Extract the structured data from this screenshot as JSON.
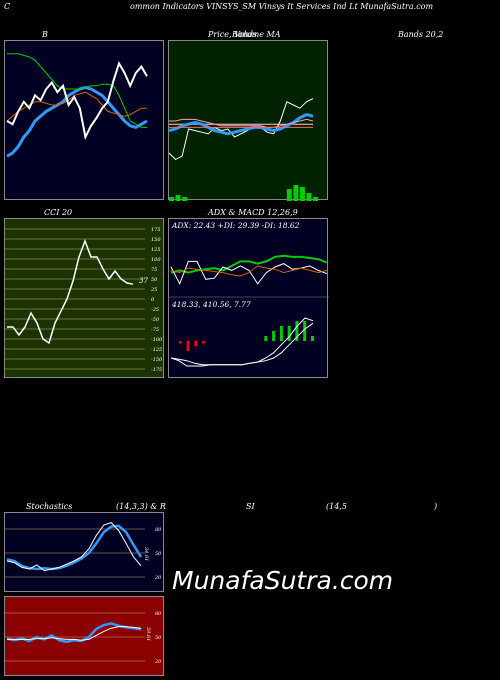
{
  "header": {
    "c": "C",
    "title": "ommon  Indicators VINSYS_SM Vinsys It Services Ind Lt MunafaSutra.com"
  },
  "colors": {
    "bg": "#000000",
    "navy": "#000022",
    "green_panel": "#002200",
    "cci_panel": "#1a3300",
    "rsi_panel": "#8b0000",
    "white": "#ffffff",
    "blue": "#3399ff",
    "green": "#00cc00",
    "orange": "#cc6600",
    "red": "#ff0000"
  },
  "panels": {
    "b": {
      "label": "B"
    },
    "price": {
      "label": "Price,  Volume  MA",
      "overlay": "Bands"
    },
    "bands": {
      "label": "Bands 20,2"
    },
    "cci": {
      "label": "CCI 20",
      "current": "37"
    },
    "adx": {
      "label": "ADX  & MACD 12,26,9",
      "adx_text": "ADX: 22.43  +DI: 29.39 -DI: 18.62",
      "macd_text": "418.33,  410.56,  7.77"
    },
    "stoch": {
      "label_left": "Stochastics",
      "label_mid": "(14,3,3) & R",
      "label_si": "SI",
      "label_right": "(14,5",
      "label_paren": ")",
      "current": "34.61"
    },
    "rsi": {
      "current": "59.61"
    }
  },
  "watermark": "MunafaSutra.com",
  "chart_data": [
    {
      "type": "line",
      "title": "B",
      "series": [
        {
          "values": [
            50,
            48,
            56,
            62,
            58,
            66,
            63,
            70,
            74,
            68,
            72,
            60,
            65,
            58,
            40,
            47,
            52,
            58,
            62,
            75,
            86,
            80,
            72,
            80,
            84,
            78
          ]
        },
        {
          "values": [
            28,
            30,
            34,
            40,
            44,
            50,
            53,
            56,
            58,
            60,
            62,
            66,
            68,
            70,
            71,
            70,
            68,
            66,
            62,
            58,
            54,
            50,
            47,
            46,
            48,
            50
          ]
        },
        {
          "values": [
            92,
            92,
            92,
            91,
            90,
            88,
            84,
            80,
            76,
            72,
            70,
            70,
            70,
            70,
            71,
            72,
            72,
            73,
            73,
            72,
            66,
            58,
            50,
            48,
            46,
            46
          ]
        },
        {
          "values": [
            50,
            53,
            56,
            58,
            60,
            62,
            62,
            61,
            60,
            60,
            61,
            63,
            66,
            67,
            68,
            66,
            64,
            60,
            56,
            55,
            54,
            53,
            54,
            56,
            58,
            58
          ]
        },
        {
          "values": [
            50,
            60,
            82,
            86,
            88,
            82,
            75,
            75,
            70,
            70,
            70,
            67,
            65,
            63,
            67,
            65,
            82,
            80,
            72,
            68,
            75,
            80,
            83,
            90,
            85,
            82,
            78,
            72
          ]
        }
      ]
    },
    {
      "type": "line",
      "title": "Price, Volume MA",
      "series": [
        {
          "values": [
            30,
            26,
            28,
            45,
            44,
            43,
            42,
            46,
            44,
            45,
            40,
            42,
            44,
            47,
            46,
            43,
            42,
            50,
            62,
            60,
            58,
            62,
            64
          ]
        },
        {
          "values": [
            48,
            48,
            48,
            48,
            48,
            48,
            48,
            48,
            48,
            48,
            48,
            48,
            48,
            48,
            48,
            48,
            48,
            48,
            48,
            48,
            48,
            48,
            48
          ]
        },
        {
          "values": [
            44,
            45,
            47,
            48,
            49,
            48,
            46,
            44,
            43,
            42,
            43,
            44,
            45,
            46,
            46,
            45,
            44,
            45,
            47,
            49,
            52,
            54,
            53
          ]
        },
        {
          "values": [
            50,
            50,
            51,
            51,
            51,
            50,
            49,
            48,
            47,
            47,
            47,
            47,
            47,
            47,
            47,
            46,
            46,
            47,
            48,
            49,
            50,
            51,
            50
          ]
        },
        {
          "values": [
            46,
            46,
            46,
            46,
            46,
            46,
            46,
            46,
            46,
            46,
            46,
            46,
            46,
            46,
            46,
            46,
            46,
            46,
            46,
            46,
            46,
            46,
            46
          ]
        }
      ],
      "volume": [
        2,
        3,
        2,
        0,
        0,
        0,
        0,
        0,
        0,
        0,
        0,
        0,
        0,
        0,
        0,
        0,
        0,
        0,
        6,
        8,
        7,
        4,
        2
      ]
    },
    {
      "type": "line",
      "title": "CCI 20",
      "y_ticks": [
        "175",
        "150",
        "125",
        "100",
        "75",
        "50",
        "25",
        "0",
        "-25",
        "-50",
        "-75",
        "-100",
        "-125",
        "-150",
        "-175"
      ],
      "ylim": [
        -175,
        175
      ],
      "values": [
        -70,
        -70,
        -90,
        -70,
        -35,
        -60,
        -100,
        -110,
        -60,
        -30,
        0,
        45,
        105,
        145,
        105,
        105,
        75,
        50,
        70,
        50,
        40,
        37
      ]
    },
    {
      "type": "line",
      "title": "ADX & MACD 12,26,9",
      "adx": [
        22,
        20,
        24,
        23,
        22,
        21,
        20,
        18,
        17,
        20,
        26,
        24,
        23,
        20,
        22,
        24,
        22,
        20,
        22
      ],
      "plus_di": [
        20,
        22,
        20,
        22,
        23,
        24,
        22,
        26,
        30,
        30,
        28,
        30,
        34,
        35,
        34,
        34,
        33,
        32,
        29
      ],
      "minus_di": [
        25,
        10,
        30,
        30,
        14,
        15,
        25,
        22,
        26,
        22,
        10,
        20,
        25,
        28,
        23,
        24,
        26,
        22,
        19
      ],
      "macd": [
        -8,
        -10,
        -14,
        -14,
        -14,
        -13,
        -13,
        -13,
        -13,
        -13,
        -12,
        -11,
        -8,
        -4,
        2,
        8,
        16,
        22,
        20
      ],
      "signal": [
        -8,
        -9,
        -10,
        -12,
        -13,
        -13,
        -13,
        -13,
        -13,
        -13,
        -12,
        -11,
        -10,
        -8,
        -4,
        2,
        8,
        14,
        18
      ],
      "histogram": [
        0,
        -1,
        -4,
        -2,
        -1,
        0,
        0,
        0,
        0,
        0,
        0,
        0,
        2,
        4,
        6,
        6,
        8,
        8,
        2
      ]
    },
    {
      "type": "line",
      "title": "Stochastics (14,3,3)",
      "y_ticks": [
        "80",
        "50",
        "20"
      ],
      "ylim": [
        0,
        100
      ],
      "k": [
        40,
        38,
        32,
        30,
        35,
        28,
        30,
        32,
        36,
        40,
        45,
        55,
        72,
        85,
        88,
        78,
        62,
        45,
        34
      ],
      "d": [
        42,
        40,
        34,
        31,
        30,
        31,
        30,
        31,
        34,
        38,
        43,
        50,
        62,
        76,
        83,
        84,
        76,
        60,
        45
      ]
    },
    {
      "type": "line",
      "title": "RSI (14,5)",
      "y_ticks": [
        "80",
        "50",
        "20"
      ],
      "ylim": [
        0,
        100
      ],
      "rsi": [
        48,
        46,
        48,
        45,
        50,
        47,
        52,
        46,
        44,
        46,
        45,
        50,
        60,
        65,
        67,
        64,
        62,
        61,
        59.61
      ],
      "rsi_smooth": [
        47,
        47,
        47,
        47,
        48,
        48,
        49,
        48,
        47,
        47,
        46,
        47,
        52,
        57,
        61,
        63,
        63,
        62,
        61
      ]
    }
  ]
}
